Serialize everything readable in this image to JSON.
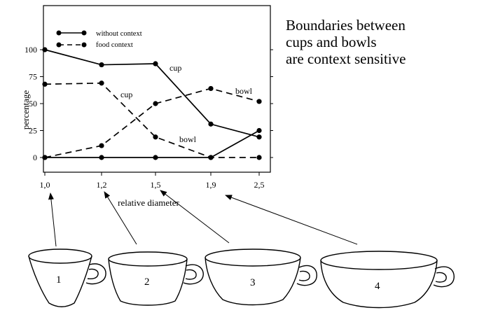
{
  "heading": {
    "lines": [
      "Boundaries between",
      "cups and bowls",
      "are context sensitive"
    ]
  },
  "chart_data": {
    "type": "line",
    "x": [
      "1,0",
      "1,2",
      "1,5",
      "1,9",
      "2,5"
    ],
    "xlabel": "relative diameter",
    "ylabel": "percentage",
    "yticks": [
      0,
      25,
      50,
      75,
      100
    ],
    "ylim": [
      0,
      100
    ],
    "grid": false,
    "legend_position": "top-left",
    "legend": [
      {
        "label": "without context",
        "style": "solid"
      },
      {
        "label": "food context",
        "style": "dashed"
      }
    ],
    "series": [
      {
        "style": "solid",
        "category": "cup",
        "values": [
          100,
          86,
          87,
          31,
          19
        ]
      },
      {
        "style": "solid",
        "category": "bowl",
        "values": [
          0,
          0,
          0,
          0,
          25
        ]
      },
      {
        "style": "dashed",
        "category": "cup",
        "values": [
          68,
          69,
          19,
          0,
          0
        ]
      },
      {
        "style": "dashed",
        "category": "bowl",
        "values": [
          0,
          11,
          50,
          64,
          52
        ]
      }
    ],
    "annotations": [
      "cup",
      "cup",
      "bowl",
      "bowl"
    ]
  },
  "cups": [
    "1",
    "2",
    "3",
    "4"
  ]
}
